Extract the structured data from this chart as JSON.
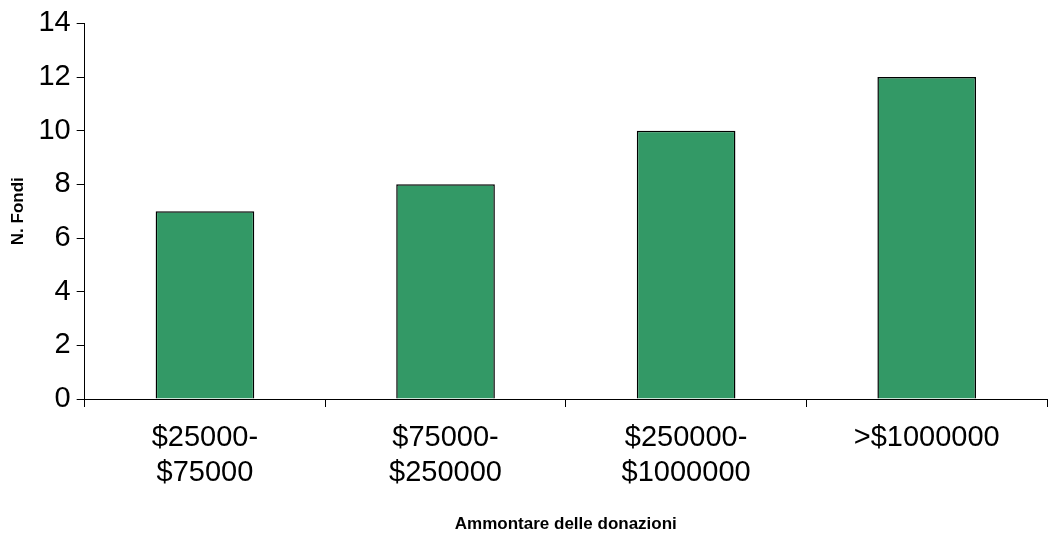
{
  "chart_data": {
    "type": "bar",
    "categories": [
      "$25000-$75000",
      "$75000-$250000",
      "$250000-$1000000",
      ">$1000000"
    ],
    "values": [
      7,
      8,
      10,
      12
    ],
    "color": "#339966",
    "xlabel": "Ammontare delle donazioni",
    "ylabel": "N. Fondi",
    "ylim": [
      0,
      14
    ],
    "yticks": [
      0,
      2,
      4,
      6,
      8,
      10,
      12,
      14
    ],
    "grid": false,
    "legend": false
  }
}
